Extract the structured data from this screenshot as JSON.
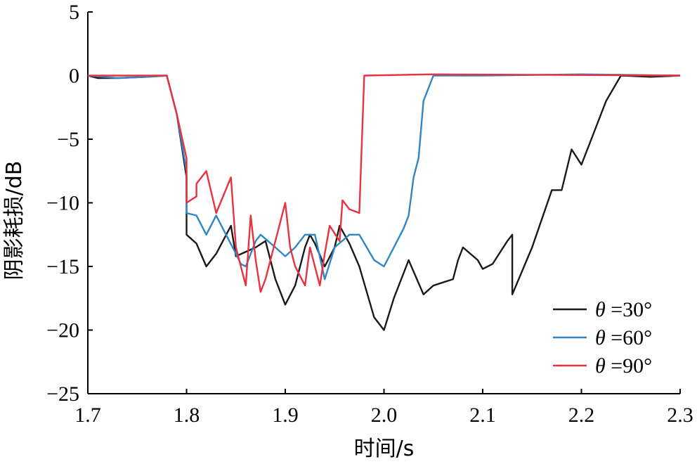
{
  "chart_data": {
    "type": "line",
    "title": "",
    "xlabel": "时间/s",
    "ylabel": "阴影耗损/dB",
    "xlim": [
      1.7,
      2.3
    ],
    "ylim": [
      -25,
      5
    ],
    "x_ticks": [
      1.7,
      1.8,
      1.9,
      2.0,
      2.1,
      2.2,
      2.3
    ],
    "x_tick_labels": [
      "1.7",
      "1.8",
      "1.9",
      "2.0",
      "2.1",
      "2.2",
      "2.3"
    ],
    "y_ticks": [
      5,
      0,
      -5,
      -10,
      -15,
      -20,
      -25
    ],
    "y_tick_labels": [
      "5",
      "0",
      "−5",
      "−10",
      "−15",
      "−20",
      "−25"
    ],
    "grid": false,
    "legend_position": "bottom-right",
    "series": [
      {
        "name": "θ =30°",
        "legend_var": "θ",
        "legend_rest": " =30°",
        "color": "#1a1a1a",
        "points": [
          [
            1.7,
            0.0
          ],
          [
            1.71,
            -0.2
          ],
          [
            1.73,
            -0.2
          ],
          [
            1.76,
            -0.1
          ],
          [
            1.78,
            0.0
          ],
          [
            1.79,
            -3.0
          ],
          [
            1.8,
            -8.0
          ],
          [
            1.8,
            -12.5
          ],
          [
            1.81,
            -13.2
          ],
          [
            1.82,
            -15.0
          ],
          [
            1.83,
            -14.0
          ],
          [
            1.845,
            -11.8
          ],
          [
            1.85,
            -14.2
          ],
          [
            1.87,
            -13.5
          ],
          [
            1.88,
            -13.0
          ],
          [
            1.89,
            -16.0
          ],
          [
            1.9,
            -18.0
          ],
          [
            1.91,
            -16.5
          ],
          [
            1.92,
            -13.5
          ],
          [
            1.925,
            -12.5
          ],
          [
            1.93,
            -13.2
          ],
          [
            1.94,
            -15.0
          ],
          [
            1.95,
            -13.5
          ],
          [
            1.955,
            -11.8
          ],
          [
            1.965,
            -13.2
          ],
          [
            1.975,
            -15.0
          ],
          [
            1.99,
            -19.0
          ],
          [
            2.0,
            -20.0
          ],
          [
            2.01,
            -17.5
          ],
          [
            2.02,
            -15.5
          ],
          [
            2.025,
            -14.5
          ],
          [
            2.04,
            -17.2
          ],
          [
            2.05,
            -16.5
          ],
          [
            2.07,
            -16.0
          ],
          [
            2.075,
            -14.5
          ],
          [
            2.08,
            -13.5
          ],
          [
            2.095,
            -14.5
          ],
          [
            2.1,
            -15.2
          ],
          [
            2.11,
            -14.8
          ],
          [
            2.125,
            -13.0
          ],
          [
            2.13,
            -12.5
          ],
          [
            2.13,
            -17.2
          ],
          [
            2.15,
            -13.5
          ],
          [
            2.17,
            -9.0
          ],
          [
            2.18,
            -9.0
          ],
          [
            2.19,
            -5.8
          ],
          [
            2.2,
            -7.0
          ],
          [
            2.21,
            -5.0
          ],
          [
            2.225,
            -2.0
          ],
          [
            2.24,
            0.0
          ],
          [
            2.27,
            -0.1
          ],
          [
            2.3,
            0.0
          ]
        ]
      },
      {
        "name": "θ =60°",
        "legend_var": "θ",
        "legend_rest": " =60°",
        "color": "#2f86c6",
        "points": [
          [
            1.7,
            0.0
          ],
          [
            1.73,
            -0.2
          ],
          [
            1.76,
            -0.1
          ],
          [
            1.78,
            0.0
          ],
          [
            1.79,
            -3.0
          ],
          [
            1.8,
            -7.5
          ],
          [
            1.8,
            -10.8
          ],
          [
            1.81,
            -11.0
          ],
          [
            1.82,
            -12.5
          ],
          [
            1.83,
            -11.0
          ],
          [
            1.84,
            -12.5
          ],
          [
            1.85,
            -14.0
          ],
          [
            1.855,
            -14.8
          ],
          [
            1.86,
            -15.0
          ],
          [
            1.87,
            -13.0
          ],
          [
            1.875,
            -12.5
          ],
          [
            1.89,
            -13.5
          ],
          [
            1.9,
            -14.2
          ],
          [
            1.91,
            -13.5
          ],
          [
            1.92,
            -12.5
          ],
          [
            1.93,
            -12.5
          ],
          [
            1.94,
            -16.0
          ],
          [
            1.95,
            -13.5
          ],
          [
            1.965,
            -12.5
          ],
          [
            1.975,
            -12.5
          ],
          [
            1.99,
            -14.5
          ],
          [
            2.0,
            -15.0
          ],
          [
            2.01,
            -13.5
          ],
          [
            2.02,
            -12.0
          ],
          [
            2.025,
            -11.0
          ],
          [
            2.03,
            -8.0
          ],
          [
            2.035,
            -6.5
          ],
          [
            2.04,
            -2.0
          ],
          [
            2.05,
            0.0
          ],
          [
            2.1,
            0.0
          ],
          [
            2.2,
            0.1
          ],
          [
            2.3,
            0.0
          ]
        ]
      },
      {
        "name": "θ =90°",
        "legend_var": "θ",
        "legend_rest": " =90°",
        "color": "#e8323f",
        "points": [
          [
            1.7,
            0.0
          ],
          [
            1.75,
            0.0
          ],
          [
            1.78,
            0.0
          ],
          [
            1.79,
            -3.0
          ],
          [
            1.8,
            -6.5
          ],
          [
            1.8,
            -10.0
          ],
          [
            1.81,
            -9.5
          ],
          [
            1.81,
            -8.5
          ],
          [
            1.82,
            -7.5
          ],
          [
            1.83,
            -10.8
          ],
          [
            1.845,
            -8.0
          ],
          [
            1.85,
            -13.5
          ],
          [
            1.86,
            -16.5
          ],
          [
            1.865,
            -11.0
          ],
          [
            1.87,
            -14.5
          ],
          [
            1.875,
            -17.0
          ],
          [
            1.88,
            -16.0
          ],
          [
            1.89,
            -13.0
          ],
          [
            1.9,
            -10.0
          ],
          [
            1.905,
            -13.5
          ],
          [
            1.91,
            -15.0
          ],
          [
            1.92,
            -16.5
          ],
          [
            1.925,
            -13.5
          ],
          [
            1.935,
            -16.5
          ],
          [
            1.94,
            -14.0
          ],
          [
            1.945,
            -11.8
          ],
          [
            1.955,
            -13.0
          ],
          [
            1.958,
            -9.8
          ],
          [
            1.965,
            -10.5
          ],
          [
            1.975,
            -10.8
          ],
          [
            1.98,
            0.0
          ],
          [
            2.05,
            0.1
          ],
          [
            2.3,
            0.0
          ]
        ]
      }
    ]
  }
}
